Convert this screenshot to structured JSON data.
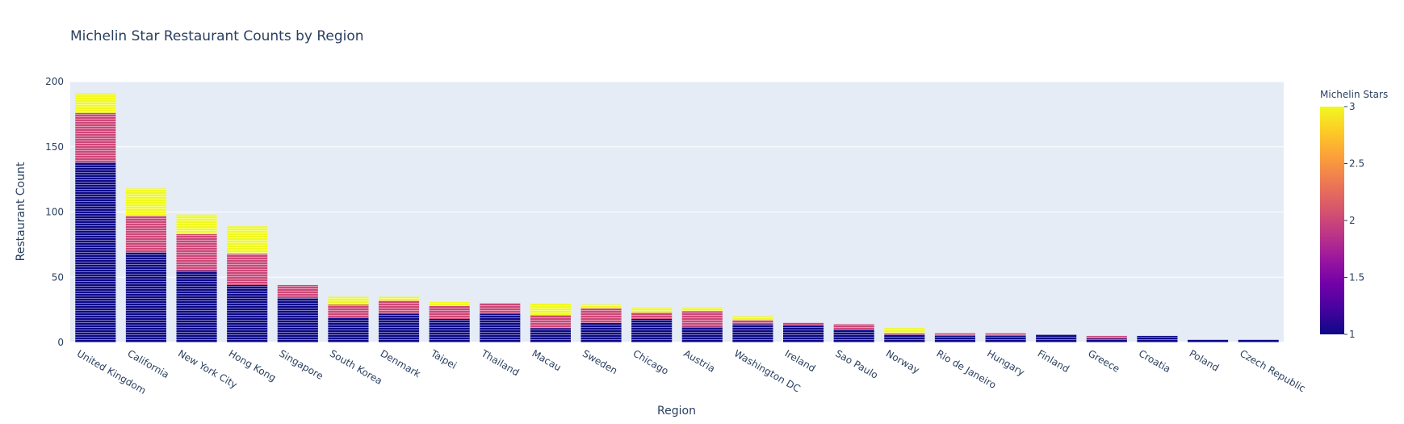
{
  "chart_data": {
    "type": "bar",
    "barmode": "stack",
    "title": "Michelin Star Restaurant Counts by Region",
    "xlabel": "Region",
    "ylabel": "Restaurant Count",
    "ylim": [
      0,
      200
    ],
    "yticks": [
      0,
      50,
      100,
      150,
      200
    ],
    "grid": true,
    "categories": [
      "United Kingdom",
      "California",
      "New York City",
      "Hong Kong",
      "Singapore",
      "South Korea",
      "Denmark",
      "Taipei",
      "Thailand",
      "Macau",
      "Sweden",
      "Chicago",
      "Austria",
      "Washington DC",
      "Ireland",
      "Sao Paulo",
      "Norway",
      "Rio de Janeiro",
      "Hungary",
      "Finland",
      "Greece",
      "Croatia",
      "Poland",
      "Czech Republic"
    ],
    "series": [
      {
        "stars": 1,
        "color": "#0d0887",
        "values": [
          138,
          69,
          55,
          44,
          34,
          19,
          22,
          18,
          22,
          11,
          15,
          18,
          12,
          14,
          13,
          10,
          6,
          5,
          5,
          6,
          3,
          5,
          2,
          2
        ]
      },
      {
        "stars": 2,
        "color": "#cc4778",
        "values": [
          38,
          28,
          28,
          24,
          10,
          10,
          10,
          10,
          8,
          10,
          11,
          5,
          12,
          3,
          2,
          4,
          1,
          2,
          2,
          0,
          2,
          0,
          0,
          0
        ]
      },
      {
        "stars": 3,
        "color": "#f0f921",
        "values": [
          15,
          21,
          15,
          21,
          0,
          6,
          3,
          3,
          0,
          9,
          3,
          4,
          3,
          3,
          0,
          0,
          4,
          0,
          0,
          0,
          0,
          0,
          0,
          0
        ]
      }
    ],
    "colorbar": {
      "title": "Michelin Stars",
      "min": 1,
      "max": 3,
      "ticks": [
        "1",
        "1.5",
        "2",
        "2.5",
        "3"
      ],
      "colorscale": [
        "#0d0887",
        "#46039f",
        "#7201a8",
        "#9c179e",
        "#bd3786",
        "#d8576b",
        "#ed7953",
        "#fb9f3a",
        "#fdca26",
        "#f0f921"
      ]
    }
  }
}
